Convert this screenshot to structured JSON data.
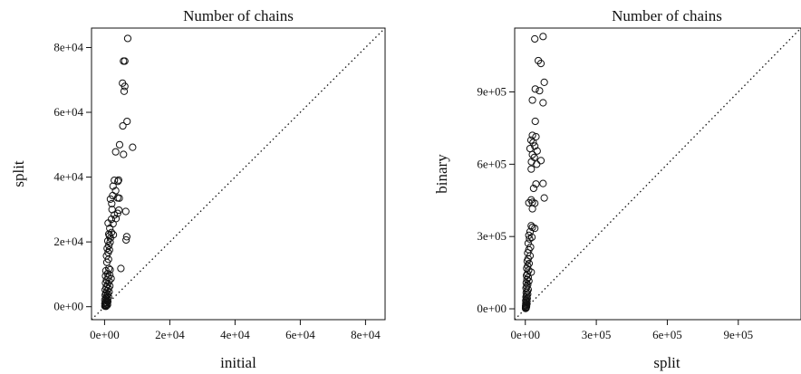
{
  "chart_data": [
    {
      "type": "scatter",
      "title": "Number of chains",
      "xlabel": "initial",
      "ylabel": "split",
      "xlim": [
        -4000,
        86000
      ],
      "ylim": [
        -4000,
        86000
      ],
      "xticks": [
        "0e+00",
        "2e+04",
        "4e+04",
        "6e+04",
        "8e+04"
      ],
      "xtick_values": [
        0,
        20000,
        40000,
        60000,
        80000
      ],
      "yticks": [
        "0e+00",
        "2e+04",
        "4e+04",
        "6e+04",
        "8e+04"
      ],
      "ytick_values": [
        0,
        20000,
        40000,
        60000,
        80000
      ],
      "reference_line": "y = x (dotted)",
      "grid": false,
      "marker": "open circle",
      "points": [
        [
          7100,
          82800
        ],
        [
          6200,
          75800
        ],
        [
          5800,
          75800
        ],
        [
          5500,
          69000
        ],
        [
          6200,
          68000
        ],
        [
          6000,
          66500
        ],
        [
          6900,
          57200
        ],
        [
          5600,
          55800
        ],
        [
          8600,
          49200
        ],
        [
          4600,
          50000
        ],
        [
          5800,
          47000
        ],
        [
          3400,
          47800
        ],
        [
          3000,
          39000
        ],
        [
          4300,
          39100
        ],
        [
          4100,
          38700
        ],
        [
          2600,
          37200
        ],
        [
          3400,
          35800
        ],
        [
          2500,
          34300
        ],
        [
          4000,
          33600
        ],
        [
          1800,
          33200
        ],
        [
          4500,
          33500
        ],
        [
          2200,
          31800
        ],
        [
          4400,
          29800
        ],
        [
          6500,
          29400
        ],
        [
          2300,
          30000
        ],
        [
          4000,
          28800
        ],
        [
          3000,
          28300
        ],
        [
          3500,
          27200
        ],
        [
          2100,
          27000
        ],
        [
          1100,
          25800
        ],
        [
          2600,
          25600
        ],
        [
          1600,
          24200
        ],
        [
          2100,
          22900
        ],
        [
          1300,
          22400
        ],
        [
          2700,
          22200
        ],
        [
          1500,
          21900
        ],
        [
          6800,
          21600
        ],
        [
          1800,
          21200
        ],
        [
          6600,
          20600
        ],
        [
          1000,
          20300
        ],
        [
          1700,
          19900
        ],
        [
          1300,
          18900
        ],
        [
          800,
          18000
        ],
        [
          1500,
          17500
        ],
        [
          1100,
          16700
        ],
        [
          600,
          15700
        ],
        [
          1200,
          14600
        ],
        [
          700,
          13700
        ],
        [
          5000,
          11800
        ],
        [
          1300,
          11800
        ],
        [
          1700,
          11400
        ],
        [
          400,
          11100
        ],
        [
          900,
          10200
        ],
        [
          1600,
          9800
        ],
        [
          300,
          9500
        ],
        [
          1100,
          9100
        ],
        [
          2000,
          8700
        ],
        [
          600,
          8200
        ],
        [
          1400,
          7900
        ],
        [
          300,
          7300
        ],
        [
          900,
          6800
        ],
        [
          1600,
          6400
        ],
        [
          500,
          6000
        ],
        [
          1200,
          5600
        ],
        [
          200,
          5200
        ],
        [
          800,
          4900
        ],
        [
          1400,
          4600
        ],
        [
          400,
          4200
        ],
        [
          1000,
          3900
        ],
        [
          200,
          3600
        ],
        [
          700,
          3300
        ],
        [
          1200,
          3000
        ],
        [
          400,
          2700
        ],
        [
          900,
          2400
        ],
        [
          100,
          2100
        ],
        [
          600,
          1900
        ],
        [
          1000,
          1600
        ],
        [
          300,
          1400
        ],
        [
          700,
          1200
        ],
        [
          100,
          1000
        ],
        [
          500,
          800
        ],
        [
          900,
          600
        ],
        [
          200,
          500
        ],
        [
          600,
          300
        ],
        [
          100,
          200
        ],
        [
          400,
          100
        ]
      ]
    },
    {
      "type": "scatter",
      "title": "Number of chains",
      "xlabel": "split",
      "ylabel": "binary",
      "xlim": [
        -45000,
        1165000
      ],
      "ylim": [
        -45000,
        1165000
      ],
      "xticks": [
        "0e+00",
        "3e+05",
        "6e+05",
        "9e+05"
      ],
      "xtick_values": [
        0,
        300000,
        600000,
        900000
      ],
      "yticks": [
        "0e+00",
        "3e+05",
        "6e+05",
        "9e+05"
      ],
      "ytick_values": [
        0,
        300000,
        600000,
        900000
      ],
      "reference_line": "y = x (dotted)",
      "grid": false,
      "marker": "open circle",
      "points": [
        [
          75000,
          1130000
        ],
        [
          40000,
          1120000
        ],
        [
          55000,
          1030000
        ],
        [
          66000,
          1018000
        ],
        [
          80000,
          940000
        ],
        [
          42000,
          912000
        ],
        [
          60000,
          905000
        ],
        [
          75000,
          855000
        ],
        [
          30000,
          866000
        ],
        [
          42000,
          778000
        ],
        [
          30000,
          720000
        ],
        [
          45000,
          714000
        ],
        [
          24000,
          700000
        ],
        [
          33000,
          690000
        ],
        [
          40000,
          675000
        ],
        [
          20000,
          665000
        ],
        [
          50000,
          655000
        ],
        [
          30000,
          640000
        ],
        [
          38000,
          628000
        ],
        [
          66000,
          615000
        ],
        [
          26000,
          610000
        ],
        [
          48000,
          600000
        ],
        [
          25000,
          580000
        ],
        [
          75000,
          520000
        ],
        [
          45000,
          518000
        ],
        [
          35000,
          500000
        ],
        [
          80000,
          460000
        ],
        [
          25000,
          452000
        ],
        [
          30000,
          442000
        ],
        [
          15000,
          440000
        ],
        [
          40000,
          438000
        ],
        [
          30000,
          415000
        ],
        [
          25000,
          345000
        ],
        [
          30000,
          338000
        ],
        [
          40000,
          334000
        ],
        [
          20000,
          320000
        ],
        [
          15000,
          305000
        ],
        [
          28000,
          297000
        ],
        [
          18000,
          290000
        ],
        [
          12000,
          272000
        ],
        [
          22000,
          256000
        ],
        [
          15000,
          245000
        ],
        [
          10000,
          232000
        ],
        [
          20000,
          220000
        ],
        [
          12000,
          208000
        ],
        [
          8000,
          198000
        ],
        [
          16000,
          188000
        ],
        [
          10000,
          178000
        ],
        [
          6000,
          168000
        ],
        [
          14000,
          160000
        ],
        [
          25000,
          152000
        ],
        [
          9000,
          145000
        ],
        [
          5000,
          138000
        ],
        [
          12000,
          130000
        ],
        [
          7000,
          122000
        ],
        [
          15000,
          115000
        ],
        [
          4000,
          108000
        ],
        [
          10000,
          100000
        ],
        [
          6000,
          93000
        ],
        [
          3000,
          86000
        ],
        [
          12000,
          80000
        ],
        [
          8000,
          73000
        ],
        [
          4000,
          67000
        ],
        [
          10000,
          61000
        ],
        [
          6000,
          55000
        ],
        [
          3000,
          49000
        ],
        [
          8000,
          44000
        ],
        [
          5000,
          39000
        ],
        [
          2000,
          34000
        ],
        [
          7000,
          30000
        ],
        [
          4000,
          26000
        ],
        [
          2000,
          22000
        ],
        [
          6000,
          18000
        ],
        [
          3000,
          15000
        ],
        [
          1000,
          12000
        ],
        [
          5000,
          9000
        ],
        [
          2000,
          7000
        ],
        [
          1000,
          5000
        ],
        [
          3000,
          3000
        ],
        [
          1000,
          1500
        ]
      ]
    }
  ]
}
